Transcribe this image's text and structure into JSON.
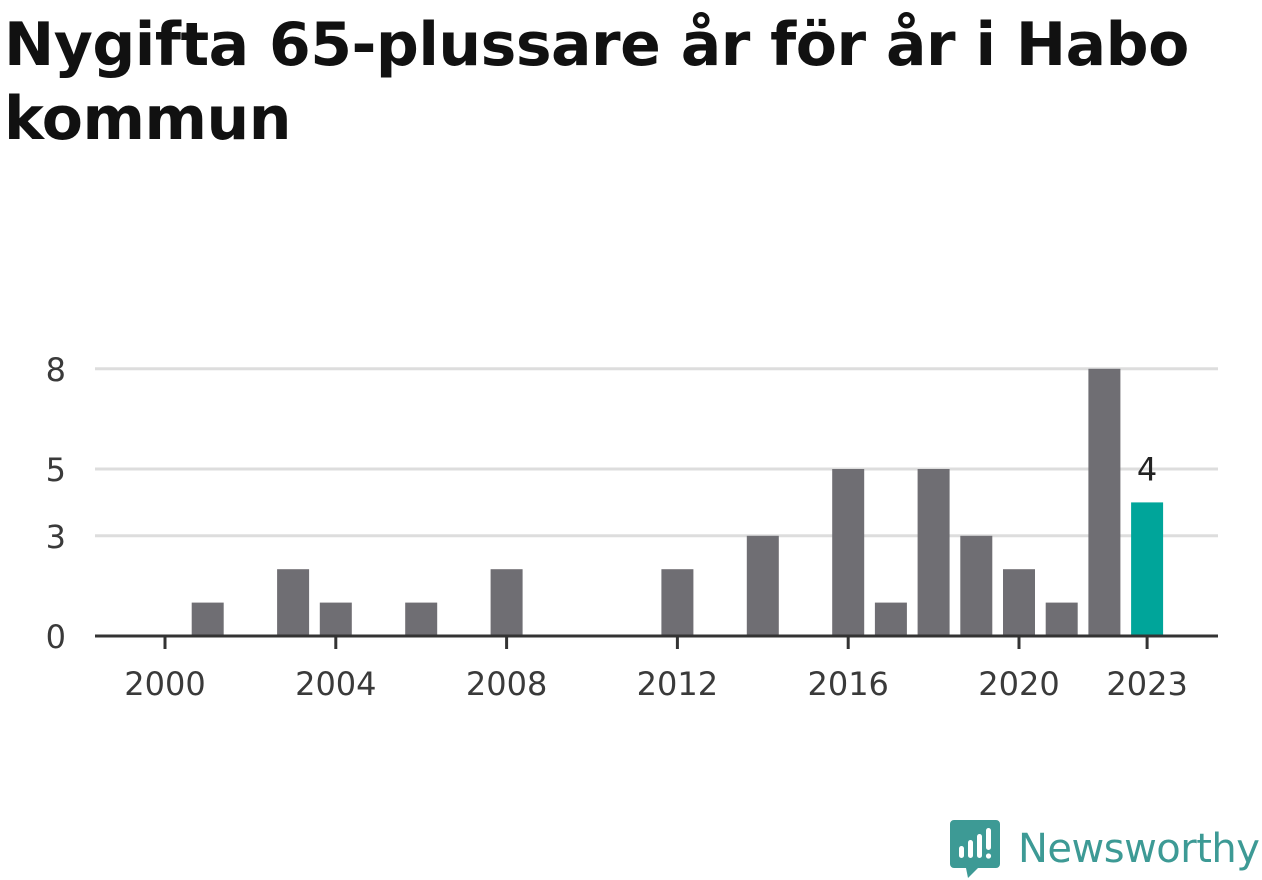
{
  "title": "Nygifta 65-plussare år för år i Habo kommun",
  "brand": {
    "name": "Newsworthy",
    "icon": "newsworthy-logo-icon",
    "color": "#3d9a95"
  },
  "chart_data": {
    "type": "bar",
    "title": "Nygifta 65-plussare år för år i Habo kommun",
    "xlabel": "",
    "ylabel": "",
    "ylim": [
      0,
      9
    ],
    "yticks": [
      0,
      3,
      5,
      8
    ],
    "ytick_labels": [
      "0",
      "3",
      "5",
      "8"
    ],
    "xticks": [
      2000,
      2004,
      2008,
      2012,
      2016,
      2020,
      2023
    ],
    "xtick_labels": [
      "2000",
      "2004",
      "2008",
      "2012",
      "2016",
      "2020",
      "2023"
    ],
    "categories": [
      2000,
      2001,
      2002,
      2003,
      2004,
      2005,
      2006,
      2007,
      2008,
      2009,
      2010,
      2011,
      2012,
      2013,
      2014,
      2015,
      2016,
      2017,
      2018,
      2019,
      2020,
      2021,
      2022,
      2023
    ],
    "values": [
      0,
      1,
      0,
      2,
      1,
      0,
      1,
      0,
      2,
      0,
      0,
      0,
      2,
      0,
      3,
      0,
      5,
      1,
      5,
      3,
      2,
      1,
      8,
      4
    ],
    "highlight": {
      "category": 2023,
      "value": 4,
      "label": "4"
    },
    "colors": {
      "bar": "#6f6e73",
      "highlight": "#00a59a",
      "grid": "#dddddd",
      "axis": "#333333"
    },
    "grid": true
  }
}
